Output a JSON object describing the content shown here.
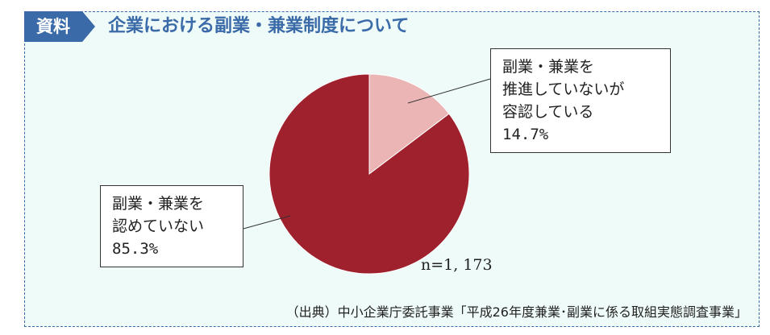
{
  "header": {
    "badge": "資料",
    "title": "企業における副業・兼業制度について"
  },
  "chart_data": {
    "type": "pie",
    "slices": [
      {
        "label_lines": [
          "副業・兼業を",
          "推進していないが",
          "容認している"
        ],
        "value": 14.7,
        "value_text": "14.7%",
        "color": "#ebb5b5"
      },
      {
        "label_lines": [
          "副業・兼業を",
          "認めていない"
        ],
        "value": 85.3,
        "value_text": "85.3%",
        "color": "#a0212e"
      }
    ],
    "n_label": "n=1, 173"
  },
  "source": "（出典）中小企業庁委託事業「平成26年度兼業･副業に係る取組実態調査事業」",
  "colors": {
    "frame_bg": "#effbf8",
    "accent": "#3a6aa8"
  }
}
